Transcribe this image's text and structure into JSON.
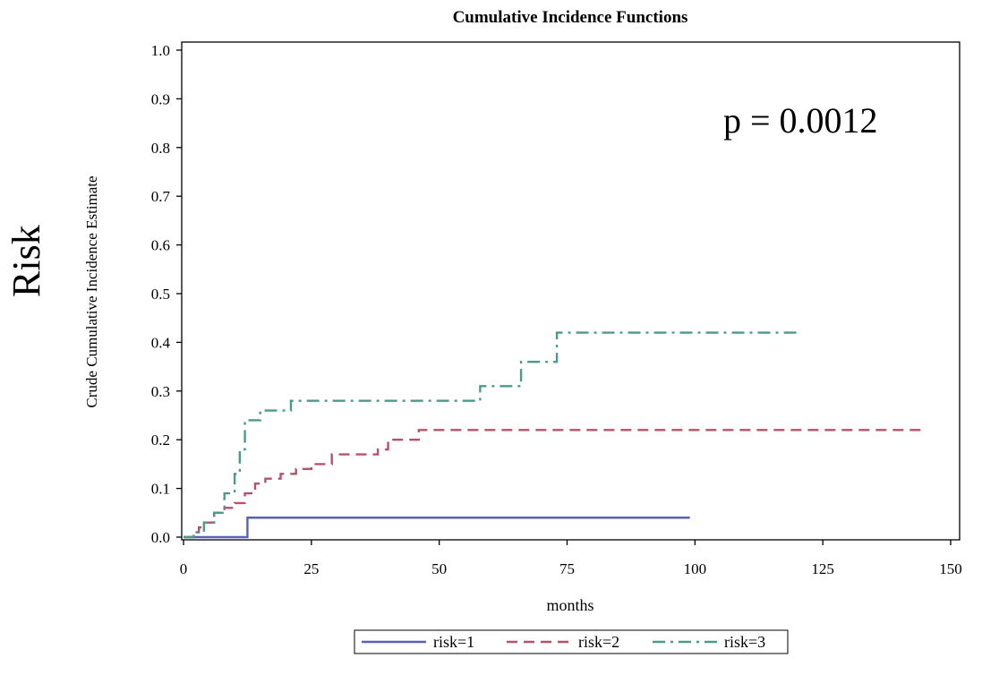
{
  "side_label": "Risk",
  "annotation": "p = 0.0012",
  "chart_data": {
    "type": "line",
    "step": true,
    "title": "Cumulative Incidence Functions",
    "xlabel": "months",
    "ylabel": "Crude Cumulative Incidence Estimate",
    "xlim": [
      0,
      150
    ],
    "ylim": [
      0,
      1.0
    ],
    "xticks": [
      0,
      25,
      50,
      75,
      100,
      125,
      150
    ],
    "yticks": [
      0.0,
      0.1,
      0.2,
      0.3,
      0.4,
      0.5,
      0.6,
      0.7,
      0.8,
      0.9,
      1.0
    ],
    "ytick_labels": [
      "0.0",
      "0.1",
      "0.2",
      "0.3",
      "0.4",
      "0.5",
      "0.6",
      "0.7",
      "0.8",
      "0.9",
      "1.0"
    ],
    "grid": false,
    "legend_position": "bottom",
    "series": [
      {
        "name": "risk=1",
        "color": "#5a5fb8",
        "dash": "solid",
        "points": [
          [
            0,
            0.0
          ],
          [
            12.5,
            0.0
          ],
          [
            12.5,
            0.04
          ],
          [
            99,
            0.04
          ]
        ]
      },
      {
        "name": "risk=2",
        "color": "#b8506a",
        "dash": "dashed",
        "points": [
          [
            0,
            0.0
          ],
          [
            2,
            0.01
          ],
          [
            3,
            0.02
          ],
          [
            4,
            0.03
          ],
          [
            6,
            0.05
          ],
          [
            8,
            0.06
          ],
          [
            10,
            0.07
          ],
          [
            12,
            0.09
          ],
          [
            14,
            0.11
          ],
          [
            16,
            0.12
          ],
          [
            19,
            0.13
          ],
          [
            22,
            0.14
          ],
          [
            25,
            0.15
          ],
          [
            29,
            0.17
          ],
          [
            38,
            0.18
          ],
          [
            40,
            0.2
          ],
          [
            46,
            0.22
          ],
          [
            145,
            0.22
          ]
        ]
      },
      {
        "name": "risk=3",
        "color": "#4a9a8a",
        "dash": "dashdot",
        "points": [
          [
            0,
            0.0
          ],
          [
            2,
            0.01
          ],
          [
            4,
            0.03
          ],
          [
            6,
            0.05
          ],
          [
            8,
            0.09
          ],
          [
            10,
            0.13
          ],
          [
            11,
            0.18
          ],
          [
            12,
            0.24
          ],
          [
            15,
            0.26
          ],
          [
            21,
            0.28
          ],
          [
            58,
            0.31
          ],
          [
            66,
            0.36
          ],
          [
            73,
            0.42
          ],
          [
            120,
            0.42
          ]
        ]
      }
    ]
  }
}
